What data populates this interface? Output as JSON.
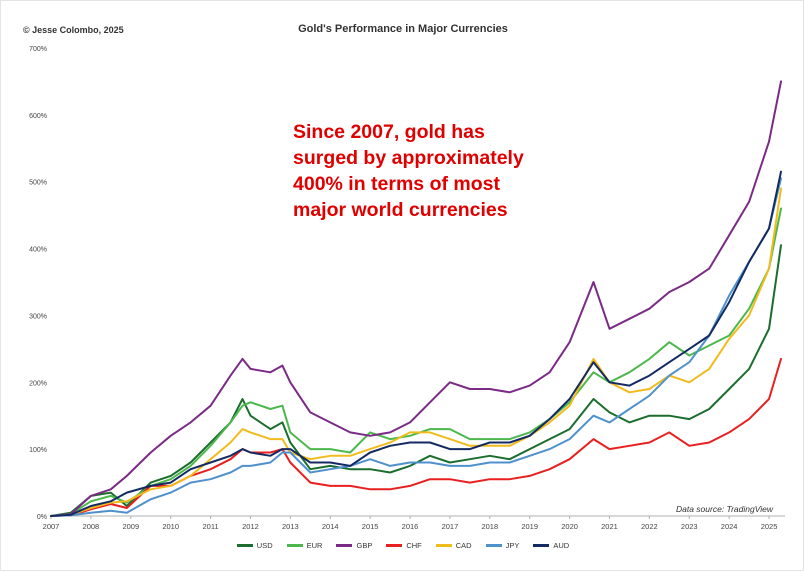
{
  "header": {
    "copyright": "© Jesse Colombo, 2025",
    "title": "Gold's Performance in Major Currencies"
  },
  "annotation": {
    "lines": [
      "Since 2007, gold has",
      "surged by approximately",
      "400% in terms of most",
      "major world currencies"
    ]
  },
  "source": "Data source: TradingView",
  "chart_data": {
    "type": "line",
    "title": "Gold's Performance in Major Currencies",
    "xlabel": "",
    "ylabel": "",
    "xlim": [
      2007,
      2025.4
    ],
    "ylim": [
      0,
      700
    ],
    "yticks": [
      0,
      100,
      200,
      300,
      400,
      500,
      600,
      700
    ],
    "ytick_labels": [
      "0%",
      "100%",
      "200%",
      "300%",
      "400%",
      "500%",
      "600%",
      "700%"
    ],
    "xticks": [
      2007,
      2008,
      2009,
      2010,
      2011,
      2012,
      2013,
      2014,
      2015,
      2016,
      2017,
      2018,
      2019,
      2020,
      2021,
      2022,
      2023,
      2024,
      2025
    ],
    "xtick_labels": [
      "2007",
      "2008",
      "2009",
      "2010",
      "2011",
      "2012",
      "2013",
      "2014",
      "2015",
      "2016",
      "2017",
      "2018",
      "2019",
      "2020",
      "2021",
      "2022",
      "2023",
      "2024",
      "2025"
    ],
    "grid": false,
    "legend_position": "bottom",
    "x": [
      2007.0,
      2007.5,
      2008.0,
      2008.5,
      2008.9,
      2009.5,
      2010.0,
      2010.5,
      2011.0,
      2011.5,
      2011.8,
      2012.0,
      2012.5,
      2012.8,
      2013.0,
      2013.5,
      2014.0,
      2014.5,
      2015.0,
      2015.5,
      2016.0,
      2016.5,
      2017.0,
      2017.5,
      2018.0,
      2018.5,
      2019.0,
      2019.5,
      2020.0,
      2020.6,
      2021.0,
      2021.5,
      2022.0,
      2022.5,
      2023.0,
      2023.5,
      2024.0,
      2024.5,
      2025.0,
      2025.3
    ],
    "series": [
      {
        "name": "USD",
        "color": "#1b6e2d",
        "values": [
          0,
          5,
          30,
          35,
          15,
          50,
          60,
          80,
          110,
          140,
          175,
          150,
          130,
          140,
          110,
          70,
          75,
          70,
          70,
          65,
          75,
          90,
          80,
          85,
          90,
          85,
          100,
          115,
          130,
          175,
          155,
          140,
          150,
          150,
          145,
          160,
          190,
          220,
          280,
          405
        ]
      },
      {
        "name": "EUR",
        "color": "#4cb84c",
        "values": [
          0,
          3,
          22,
          30,
          20,
          45,
          55,
          75,
          105,
          140,
          165,
          170,
          160,
          165,
          125,
          100,
          100,
          95,
          125,
          115,
          120,
          130,
          130,
          115,
          115,
          115,
          125,
          145,
          170,
          215,
          200,
          215,
          235,
          260,
          240,
          255,
          270,
          310,
          370,
          460
        ]
      },
      {
        "name": "GBP",
        "color": "#7b2a86",
        "values": [
          0,
          3,
          30,
          40,
          60,
          95,
          120,
          140,
          165,
          210,
          235,
          220,
          215,
          225,
          200,
          155,
          140,
          125,
          120,
          125,
          140,
          170,
          200,
          190,
          190,
          185,
          195,
          215,
          260,
          350,
          280,
          295,
          310,
          335,
          350,
          370,
          420,
          470,
          560,
          650
        ]
      },
      {
        "name": "CHF",
        "color": "#e8201f",
        "values": [
          0,
          1,
          10,
          18,
          12,
          45,
          45,
          60,
          70,
          85,
          100,
          95,
          95,
          100,
          80,
          50,
          45,
          45,
          40,
          40,
          45,
          55,
          55,
          50,
          55,
          55,
          60,
          70,
          85,
          115,
          100,
          105,
          110,
          125,
          105,
          110,
          125,
          145,
          175,
          235
        ]
      },
      {
        "name": "CAD",
        "color": "#f2bb1d",
        "values": [
          0,
          2,
          12,
          20,
          22,
          40,
          45,
          60,
          85,
          110,
          130,
          125,
          115,
          115,
          95,
          85,
          90,
          90,
          100,
          110,
          125,
          125,
          115,
          105,
          105,
          105,
          120,
          140,
          165,
          235,
          200,
          185,
          190,
          210,
          200,
          220,
          265,
          300,
          370,
          490
        ]
      },
      {
        "name": "JPY",
        "color": "#4f91cc",
        "values": [
          0,
          1,
          5,
          8,
          5,
          25,
          35,
          50,
          55,
          65,
          75,
          75,
          80,
          95,
          95,
          65,
          70,
          75,
          85,
          75,
          80,
          80,
          75,
          75,
          80,
          80,
          90,
          100,
          115,
          150,
          140,
          160,
          180,
          210,
          230,
          270,
          330,
          380,
          430,
          505
        ]
      },
      {
        "name": "AUD",
        "color": "#142a63",
        "values": [
          0,
          2,
          15,
          22,
          35,
          45,
          50,
          70,
          80,
          90,
          100,
          95,
          90,
          100,
          100,
          80,
          80,
          75,
          95,
          105,
          110,
          110,
          100,
          100,
          110,
          110,
          120,
          145,
          175,
          230,
          200,
          195,
          210,
          230,
          250,
          270,
          320,
          380,
          430,
          515
        ]
      }
    ]
  }
}
